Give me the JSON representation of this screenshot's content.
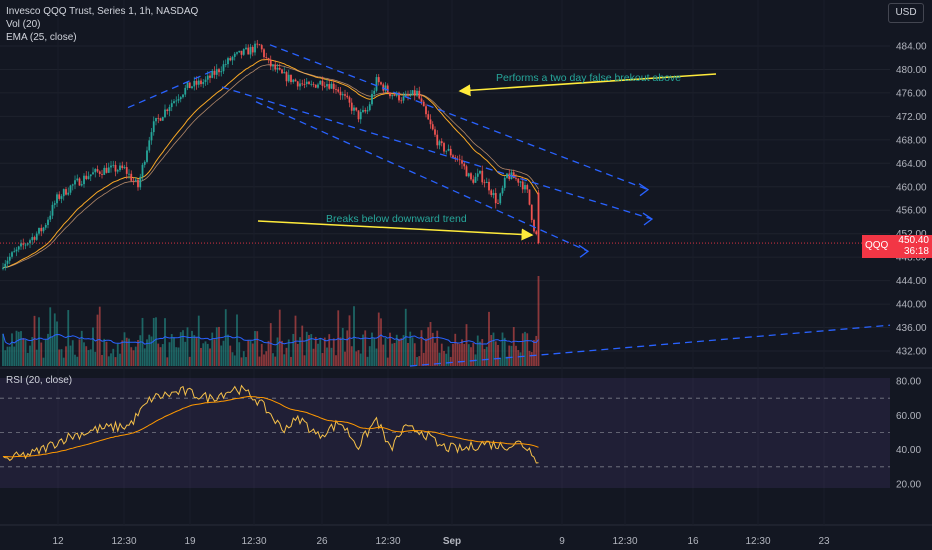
{
  "header": {
    "title": "Invesco QQQ Trust, Series 1, 1h, NASDAQ",
    "indicator_vol": "Vol (20)",
    "indicator_ema": "EMA (25, close)",
    "currency_button": "USD"
  },
  "price_tag": {
    "symbol": "QQQ",
    "price": "450.40",
    "countdown": "36:18"
  },
  "colors": {
    "up": "#26a69a",
    "down": "#ef5350",
    "ema": "#f9a825",
    "vol_ma": "#2962ff",
    "trend": "#2962ff",
    "annotation_arrow": "#ffeb3b",
    "annotation_text": "#26a69a",
    "rsi": "#f5c04a",
    "rsi_ma": "#ff9800",
    "price_tag": "#f23645"
  },
  "chart_data": [
    {
      "type": "candlestick",
      "title": "Invesco QQQ Trust, Series 1, 1h, NASDAQ",
      "y_ticks": [
        "484.00",
        "480.00",
        "476.00",
        "472.00",
        "468.00",
        "464.00",
        "460.00",
        "456.00",
        "452.00",
        "448.00",
        "444.00",
        "440.00",
        "436.00",
        "432.00"
      ],
      "ylim": [
        430.5,
        486.5
      ],
      "x_ticks": [
        "12",
        "12:30",
        "19",
        "12:30",
        "26",
        "12:30",
        "Sep",
        "9",
        "12:30",
        "16",
        "12:30",
        "23"
      ],
      "last_price": 450.4,
      "ema_label": "EMA (25, close)",
      "annotations": [
        "Performs a two day false brekout above",
        "Breaks below downward trend"
      ]
    },
    {
      "type": "bar",
      "title": "Vol (20)"
    },
    {
      "type": "line",
      "title": "RSI (20, close)",
      "y_ticks": [
        "80.00",
        "60.00",
        "40.00",
        "20.00"
      ],
      "ylim": [
        15,
        85
      ],
      "bands": [
        70,
        50,
        30
      ]
    }
  ],
  "rsi": {
    "label": "RSI (20, close)"
  }
}
